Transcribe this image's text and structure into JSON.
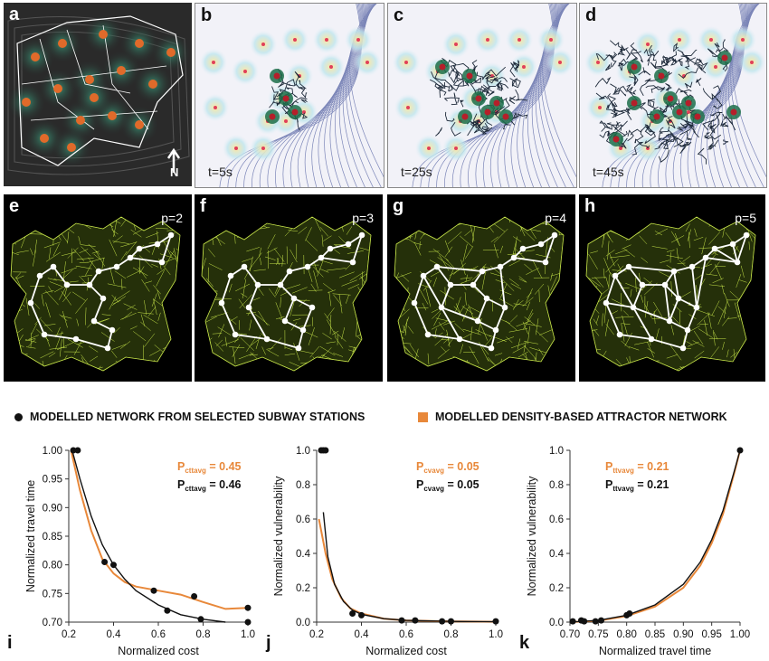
{
  "figure": {
    "top_panels": [
      {
        "label": "a",
        "caption": "",
        "north": "N"
      },
      {
        "label": "b",
        "caption": "t=5s"
      },
      {
        "label": "c",
        "caption": "t=25s"
      },
      {
        "label": "d",
        "caption": "t=45s"
      }
    ],
    "network_panels": [
      {
        "label": "e",
        "caption": "p=2"
      },
      {
        "label": "f",
        "caption": "p=3"
      },
      {
        "label": "g",
        "caption": "p=4"
      },
      {
        "label": "h",
        "caption": "p=5"
      }
    ],
    "legend": {
      "black": "MODELLED NETWORK FROM SELECTED SUBWAY STATIONS",
      "orange": "MODELLED DENSITY-BASED ATTRACTOR NETWORK"
    },
    "colors": {
      "orange": "#e8883a",
      "black": "#111111",
      "network_green": "#c8e64a",
      "panel_bg": "#000000"
    }
  },
  "chart_data": [
    {
      "type": "scatter",
      "label": "i",
      "xlabel": "Normalized cost",
      "ylabel": "Normalized travel time",
      "xlim": [
        0.2,
        1.0
      ],
      "ylim": [
        0.7,
        1.0
      ],
      "xticks": [
        "0.2",
        "0.4",
        "0.6",
        "0.8",
        "1.0"
      ],
      "yticks": [
        "0.70",
        "0.75",
        "0.80",
        "0.85",
        "0.90",
        "0.95",
        "1.00"
      ],
      "annotation_orange": {
        "main": "P",
        "sub": "cttavg",
        "value": " = 0.45"
      },
      "annotation_black": {
        "main": "P",
        "sub": "cttavg",
        "value": " = 0.46"
      },
      "series": [
        {
          "name": "MODELLED NETWORK FROM SELECTED SUBWAY STATIONS",
          "color": "#111111",
          "points": [
            [
              0.22,
              1.0
            ],
            [
              0.24,
              1.0
            ],
            [
              0.36,
              0.805
            ],
            [
              0.4,
              0.8
            ],
            [
              0.58,
              0.755
            ],
            [
              0.64,
              0.72
            ],
            [
              0.76,
              0.745
            ],
            [
              0.79,
              0.705
            ],
            [
              1.0,
              0.7
            ],
            [
              1.0,
              0.725
            ]
          ],
          "curve": [
            [
              0.215,
              1.0
            ],
            [
              0.25,
              0.95
            ],
            [
              0.3,
              0.885
            ],
            [
              0.35,
              0.835
            ],
            [
              0.4,
              0.8
            ],
            [
              0.45,
              0.775
            ],
            [
              0.5,
              0.755
            ],
            [
              0.6,
              0.73
            ],
            [
              0.7,
              0.713
            ],
            [
              0.8,
              0.705
            ],
            [
              0.9,
              0.7
            ]
          ]
        },
        {
          "name": "MODELLED DENSITY-BASED ATTRACTOR NETWORK",
          "color": "#e8883a",
          "points": [],
          "curve": [
            [
              0.21,
              1.0
            ],
            [
              0.25,
              0.93
            ],
            [
              0.3,
              0.86
            ],
            [
              0.35,
              0.81
            ],
            [
              0.4,
              0.785
            ],
            [
              0.45,
              0.77
            ],
            [
              0.5,
              0.762
            ],
            [
              0.6,
              0.755
            ],
            [
              0.7,
              0.748
            ],
            [
              0.8,
              0.735
            ],
            [
              0.9,
              0.723
            ],
            [
              1.0,
              0.725
            ]
          ]
        }
      ]
    },
    {
      "type": "scatter",
      "label": "j",
      "xlabel": "Normalized cost",
      "ylabel": "Normalized vulnerability",
      "xlim": [
        0.2,
        1.0
      ],
      "ylim": [
        0.0,
        1.0
      ],
      "xticks": [
        "0.2",
        "0.4",
        "0.6",
        "0.8",
        "1.0"
      ],
      "yticks": [
        "0.0",
        "0.2",
        "0.4",
        "0.6",
        "0.8",
        "1.0"
      ],
      "annotation_orange": {
        "main": "P",
        "sub": "cvavg",
        "value": " = 0.05"
      },
      "annotation_black": {
        "main": "P",
        "sub": "cvavg",
        "value": " = 0.05"
      },
      "series": [
        {
          "name": "MODELLED NETWORK FROM SELECTED SUBWAY STATIONS",
          "color": "#111111",
          "points": [
            [
              0.22,
              1.0
            ],
            [
              0.23,
              1.0
            ],
            [
              0.24,
              1.0
            ],
            [
              0.36,
              0.05
            ],
            [
              0.4,
              0.04
            ],
            [
              0.58,
              0.01
            ],
            [
              0.64,
              0.01
            ],
            [
              0.76,
              0.005
            ],
            [
              0.8,
              0.005
            ],
            [
              1.0,
              0.005
            ]
          ],
          "curve": [
            [
              0.23,
              0.64
            ],
            [
              0.25,
              0.38
            ],
            [
              0.28,
              0.22
            ],
            [
              0.32,
              0.12
            ],
            [
              0.36,
              0.07
            ],
            [
              0.4,
              0.045
            ],
            [
              0.5,
              0.02
            ],
            [
              0.6,
              0.01
            ],
            [
              0.8,
              0.004
            ],
            [
              1.0,
              0.002
            ]
          ]
        },
        {
          "name": "MODELLED DENSITY-BASED ATTRACTOR NETWORK",
          "color": "#e8883a",
          "points": [],
          "curve": [
            [
              0.21,
              0.6
            ],
            [
              0.24,
              0.4
            ],
            [
              0.27,
              0.25
            ],
            [
              0.31,
              0.14
            ],
            [
              0.35,
              0.08
            ],
            [
              0.4,
              0.05
            ],
            [
              0.5,
              0.02
            ],
            [
              0.6,
              0.01
            ],
            [
              0.8,
              0.004
            ],
            [
              1.0,
              0.002
            ]
          ]
        }
      ]
    },
    {
      "type": "scatter",
      "label": "k",
      "xlabel": "Normalized travel time",
      "ylabel": "Normalized vulnerability",
      "xlim": [
        0.7,
        1.0
      ],
      "ylim": [
        0.0,
        1.0
      ],
      "xticks": [
        "0.70",
        "0.75",
        "0.80",
        "0.85",
        "0.90",
        "0.95",
        "1.00"
      ],
      "yticks": [
        "0.0",
        "0.2",
        "0.4",
        "0.6",
        "0.8",
        "1.0"
      ],
      "annotation_orange": {
        "main": "P",
        "sub": "ttvavg",
        "value": " = 0.21"
      },
      "annotation_black": {
        "main": "P",
        "sub": "ttvavg",
        "value": " = 0.21"
      },
      "series": [
        {
          "name": "MODELLED NETWORK FROM SELECTED SUBWAY STATIONS",
          "color": "#111111",
          "points": [
            [
              0.705,
              0.005
            ],
            [
              0.72,
              0.01
            ],
            [
              0.725,
              0.005
            ],
            [
              0.745,
              0.005
            ],
            [
              0.755,
              0.01
            ],
            [
              0.8,
              0.04
            ],
            [
              0.805,
              0.05
            ],
            [
              1.0,
              1.0
            ]
          ],
          "curve": [
            [
              0.7,
              0.0
            ],
            [
              0.75,
              0.01
            ],
            [
              0.8,
              0.04
            ],
            [
              0.85,
              0.1
            ],
            [
              0.9,
              0.22
            ],
            [
              0.93,
              0.35
            ],
            [
              0.95,
              0.48
            ],
            [
              0.97,
              0.65
            ],
            [
              0.99,
              0.88
            ],
            [
              1.0,
              1.0
            ]
          ]
        },
        {
          "name": "MODELLED DENSITY-BASED ATTRACTOR NETWORK",
          "color": "#e8883a",
          "points": [],
          "curve": [
            [
              0.7,
              0.0
            ],
            [
              0.75,
              0.008
            ],
            [
              0.8,
              0.035
            ],
            [
              0.85,
              0.09
            ],
            [
              0.9,
              0.2
            ],
            [
              0.93,
              0.33
            ],
            [
              0.95,
              0.46
            ],
            [
              0.97,
              0.63
            ],
            [
              0.99,
              0.87
            ],
            [
              1.0,
              1.0
            ]
          ]
        }
      ]
    }
  ]
}
